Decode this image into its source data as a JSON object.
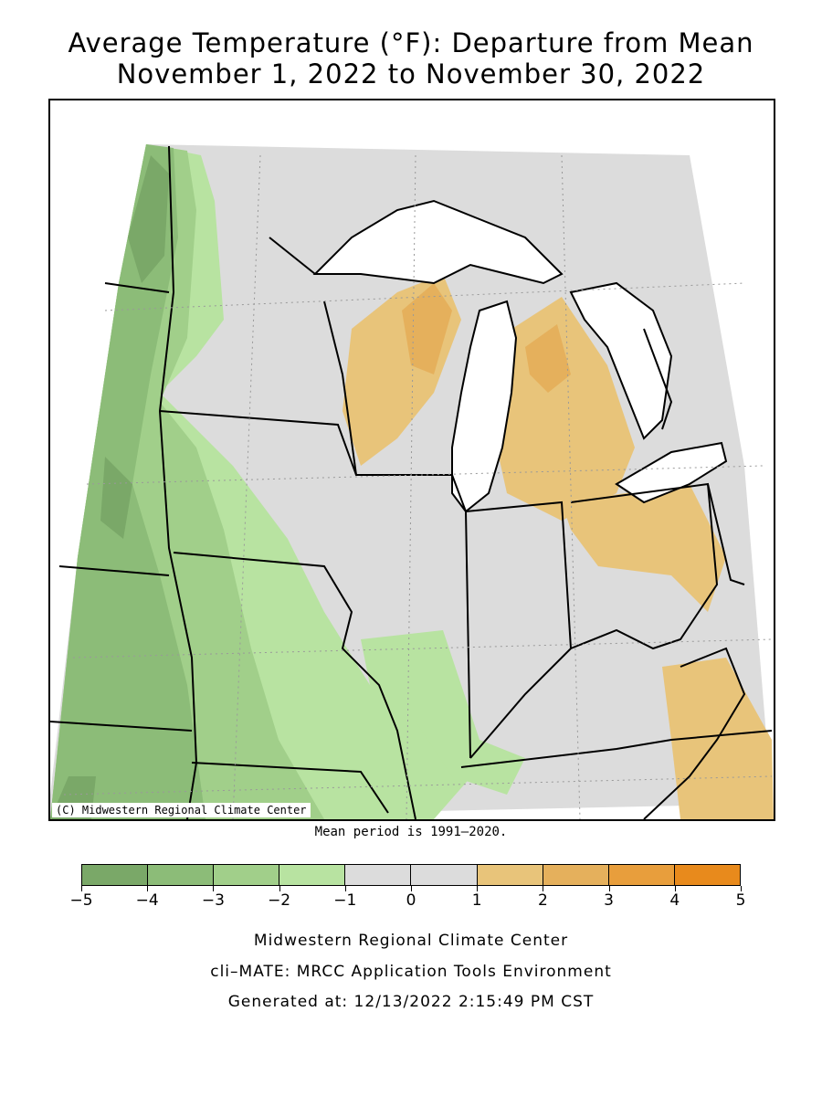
{
  "title": {
    "line1": "Average Temperature (°F): Departure from Mean",
    "line2": "November 1, 2022 to November 30, 2022"
  },
  "map": {
    "copyright": "(C) Midwestern Regional Climate Center",
    "mean_period": "Mean period is 1991–2020."
  },
  "legend": {
    "colors": [
      "#7aa868",
      "#8cbc78",
      "#a1cf8a",
      "#b8e3a1",
      "#dcdcdc",
      "#dcdcdc",
      "#e8c47a",
      "#e5b05c",
      "#e89e3c",
      "#e88a1c"
    ],
    "ticks": [
      "−5",
      "−4",
      "−3",
      "−2",
      "−1",
      "0",
      "1",
      "2",
      "3",
      "4",
      "5"
    ]
  },
  "footer": {
    "line1": "Midwestern Regional Climate Center",
    "line2": "cli–MATE: MRCC Application Tools Environment",
    "line3": "Generated at: 12/13/2022 2:15:49 PM CST"
  }
}
